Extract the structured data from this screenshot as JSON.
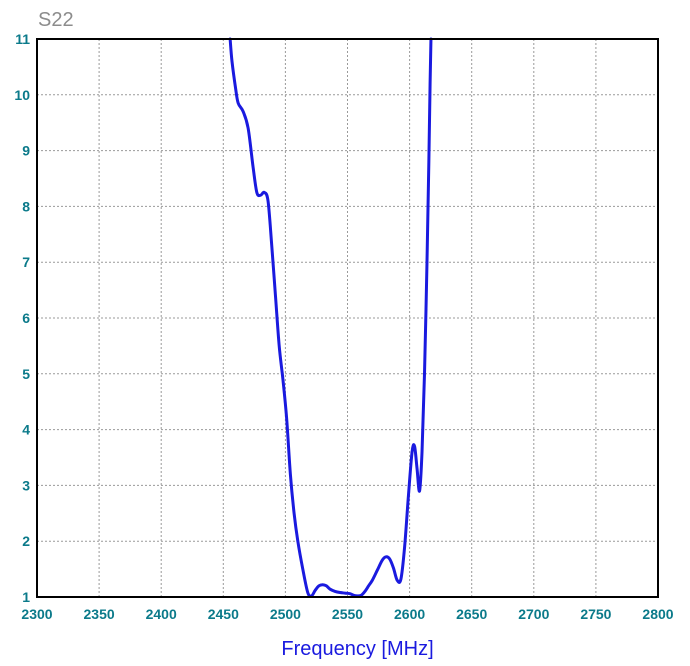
{
  "chart_data": {
    "type": "line",
    "title": "S22",
    "xlabel": "Frequency [MHz]",
    "ylabel": "",
    "xlim": [
      2300,
      2800
    ],
    "ylim": [
      1,
      11
    ],
    "xticks": [
      2300,
      2350,
      2400,
      2450,
      2500,
      2550,
      2600,
      2650,
      2700,
      2750,
      2800
    ],
    "yticks": [
      1,
      2,
      3,
      4,
      5,
      6,
      7,
      8,
      9,
      10,
      11
    ],
    "grid": true,
    "series": [
      {
        "name": "",
        "x": [
          2455.5,
          2457,
          2460,
          2462,
          2466,
          2470,
          2474,
          2477,
          2480,
          2483,
          2486,
          2489,
          2492,
          2495,
          2498,
          2501,
          2504,
          2507,
          2510,
          2514,
          2518,
          2521,
          2524,
          2527,
          2530,
          2533,
          2536,
          2540,
          2544,
          2548,
          2552,
          2555,
          2558,
          2561,
          2564,
          2567,
          2570,
          2574,
          2578,
          2581,
          2584,
          2587,
          2590,
          2593,
          2596,
          2599,
          2602,
          2604,
          2606,
          2608,
          2610,
          2612,
          2614,
          2615.5,
          2616.5,
          2617.2
        ],
        "y": [
          11,
          10.6,
          10.1,
          9.85,
          9.7,
          9.4,
          8.7,
          8.25,
          8.2,
          8.25,
          8.1,
          7.3,
          6.4,
          5.5,
          4.9,
          4.2,
          3.2,
          2.5,
          2.0,
          1.5,
          1.08,
          1.02,
          1.12,
          1.2,
          1.22,
          1.2,
          1.14,
          1.1,
          1.08,
          1.07,
          1.06,
          1.03,
          1.02,
          1.03,
          1.1,
          1.2,
          1.3,
          1.48,
          1.66,
          1.72,
          1.68,
          1.52,
          1.3,
          1.32,
          1.9,
          2.8,
          3.6,
          3.7,
          3.3,
          2.9,
          3.6,
          5.0,
          7.0,
          8.8,
          10.2,
          11
        ]
      }
    ],
    "colors": {
      "line": "#1a1adf",
      "ticks": "#0b7a8a",
      "xlabel": "#1a1adf",
      "title": "#8c8c8c",
      "grid": "#9a9a9a",
      "frame": "#000000"
    }
  }
}
